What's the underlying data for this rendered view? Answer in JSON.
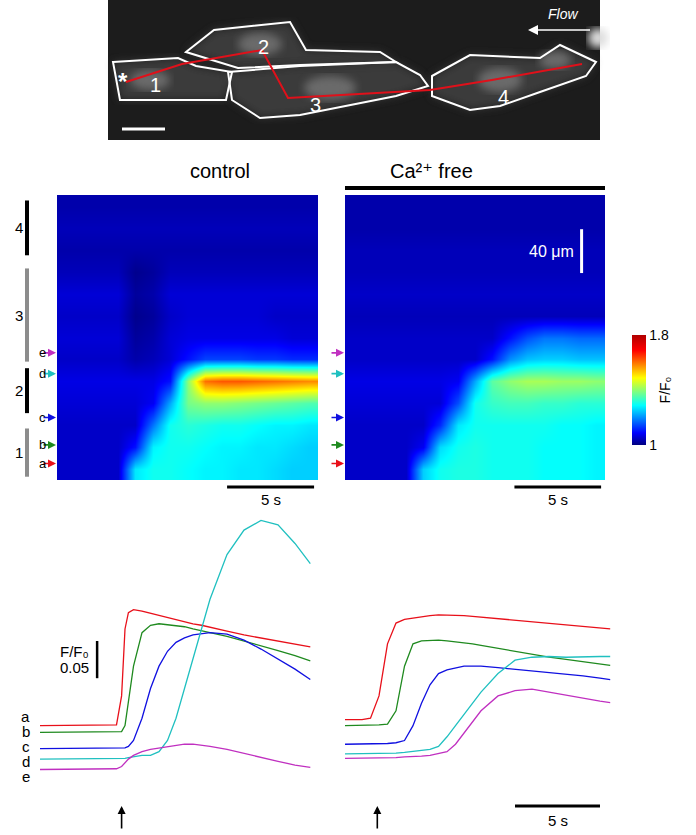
{
  "image": {
    "cell_labels": [
      "1",
      "2",
      "3",
      "4"
    ],
    "stimulus_mark": "*",
    "flow_label": "Flow"
  },
  "chart_data": [
    {
      "type": "heatmap",
      "title": "control",
      "x": [
        0.5,
        1.5,
        2.5,
        3.5,
        4.5,
        5.5,
        6.5,
        7.5,
        8.5,
        9.5,
        10.5,
        11.5,
        12.5,
        13.5,
        14.5
      ],
      "y": [
        10,
        30,
        50,
        70,
        90,
        110,
        130,
        150,
        170,
        190,
        210,
        230,
        250
      ],
      "cells": [
        [
          1.05,
          1.05,
          1.05,
          1.05,
          1.27,
          1.3,
          1.3,
          1.29,
          1.28,
          1.28,
          1.27,
          1.27,
          1.26,
          1.25,
          1.25
        ],
        [
          1.05,
          1.05,
          1.05,
          1.05,
          1.1,
          1.28,
          1.3,
          1.3,
          1.29,
          1.28,
          1.28,
          1.27,
          1.27,
          1.26,
          1.25
        ],
        [
          1.05,
          1.05,
          1.05,
          1.05,
          1.05,
          1.18,
          1.3,
          1.32,
          1.31,
          1.3,
          1.3,
          1.29,
          1.28,
          1.28,
          1.27
        ],
        [
          1.06,
          1.06,
          1.06,
          1.06,
          1.06,
          1.08,
          1.22,
          1.38,
          1.4,
          1.4,
          1.39,
          1.38,
          1.37,
          1.36,
          1.35
        ],
        [
          1.07,
          1.07,
          1.07,
          1.07,
          1.07,
          1.07,
          1.1,
          1.4,
          1.6,
          1.62,
          1.62,
          1.61,
          1.6,
          1.59,
          1.58
        ],
        [
          1.05,
          1.05,
          1.05,
          1.05,
          1.03,
          1.04,
          1.06,
          1.1,
          1.14,
          1.14,
          1.14,
          1.13,
          1.13,
          1.12,
          1.12
        ],
        [
          1.06,
          1.06,
          1.06,
          1.06,
          1.02,
          1.03,
          1.06,
          1.07,
          1.07,
          1.07,
          1.07,
          1.07,
          1.07,
          1.06,
          1.06
        ],
        [
          1.05,
          1.05,
          1.05,
          1.05,
          1.01,
          1.02,
          1.05,
          1.06,
          1.06,
          1.06,
          1.06,
          1.06,
          1.05,
          1.05,
          1.05
        ],
        [
          1.06,
          1.06,
          1.06,
          1.06,
          1.02,
          1.03,
          1.06,
          1.06,
          1.06,
          1.06,
          1.06,
          1.06,
          1.06,
          1.06,
          1.06
        ],
        [
          1.04,
          1.04,
          1.04,
          1.04,
          1.01,
          1.02,
          1.04,
          1.04,
          1.04,
          1.04,
          1.04,
          1.04,
          1.04,
          1.04,
          1.04
        ],
        [
          1.03,
          1.03,
          1.03,
          1.03,
          1.03,
          1.03,
          1.03,
          1.03,
          1.03,
          1.03,
          1.03,
          1.03,
          1.03,
          1.03,
          1.03
        ],
        [
          1.04,
          1.04,
          1.04,
          1.04,
          1.04,
          1.04,
          1.04,
          1.04,
          1.04,
          1.04,
          1.04,
          1.04,
          1.04,
          1.04,
          1.04
        ],
        [
          1.03,
          1.03,
          1.03,
          1.03,
          1.03,
          1.03,
          1.03,
          1.03,
          1.03,
          1.03,
          1.03,
          1.03,
          1.03,
          1.03,
          1.03
        ]
      ],
      "xlim": [
        0,
        15
      ],
      "ylim": [
        0,
        260
      ],
      "tick_labels": false,
      "colorbar_range": [
        1,
        1.8
      ],
      "colorbar_ticks": [
        1,
        1.8
      ],
      "colorbar_title": "F/F₀",
      "time_scale_bar": {
        "value": 5,
        "label": "5 s"
      },
      "regions": [
        {
          "label": "1",
          "from": 3,
          "to": 47
        },
        {
          "label": "2",
          "from": 61,
          "to": 102
        },
        {
          "label": "3",
          "from": 108,
          "to": 193
        },
        {
          "label": "4",
          "from": 205,
          "to": 255
        }
      ],
      "scan_lines": [
        {
          "label": "a",
          "position": 15,
          "color": "#e8101a"
        },
        {
          "label": "b",
          "position": 32,
          "color": "#1f8a1f"
        },
        {
          "label": "c",
          "position": 57,
          "color": "#1010e0"
        },
        {
          "label": "d",
          "position": 97,
          "color": "#20c0c0"
        },
        {
          "label": "e",
          "position": 116,
          "color": "#c030c0"
        }
      ]
    },
    {
      "type": "heatmap",
      "title": "Ca²⁺ free",
      "x": [
        0.5,
        1.5,
        2.5,
        3.5,
        4.5,
        5.5,
        6.5,
        7.5,
        8.5,
        9.5,
        10.5,
        11.5,
        12.5,
        13.5,
        14.5
      ],
      "y": [
        10,
        30,
        50,
        70,
        90,
        110,
        130,
        150,
        170,
        190,
        210,
        230,
        250
      ],
      "cells": [
        [
          1.05,
          1.05,
          1.05,
          1.05,
          1.25,
          1.3,
          1.31,
          1.31,
          1.3,
          1.3,
          1.3,
          1.29,
          1.29,
          1.29,
          1.28
        ],
        [
          1.05,
          1.05,
          1.05,
          1.05,
          1.08,
          1.26,
          1.3,
          1.31,
          1.3,
          1.3,
          1.3,
          1.29,
          1.29,
          1.29,
          1.28
        ],
        [
          1.05,
          1.05,
          1.05,
          1.05,
          1.05,
          1.12,
          1.27,
          1.3,
          1.3,
          1.3,
          1.3,
          1.3,
          1.29,
          1.29,
          1.28
        ],
        [
          1.06,
          1.06,
          1.06,
          1.06,
          1.06,
          1.06,
          1.15,
          1.3,
          1.33,
          1.34,
          1.34,
          1.33,
          1.33,
          1.32,
          1.32
        ],
        [
          1.07,
          1.07,
          1.07,
          1.07,
          1.07,
          1.07,
          1.08,
          1.22,
          1.36,
          1.4,
          1.42,
          1.42,
          1.41,
          1.41,
          1.4
        ],
        [
          1.05,
          1.05,
          1.05,
          1.05,
          1.05,
          1.05,
          1.05,
          1.05,
          1.1,
          1.2,
          1.24,
          1.25,
          1.25,
          1.24,
          1.24
        ],
        [
          1.05,
          1.05,
          1.05,
          1.05,
          1.05,
          1.05,
          1.05,
          1.05,
          1.05,
          1.1,
          1.15,
          1.18,
          1.18,
          1.17,
          1.17
        ],
        [
          1.04,
          1.04,
          1.04,
          1.04,
          1.04,
          1.04,
          1.04,
          1.04,
          1.04,
          1.04,
          1.04,
          1.04,
          1.04,
          1.04,
          1.04
        ],
        [
          1.05,
          1.05,
          1.05,
          1.05,
          1.05,
          1.05,
          1.05,
          1.05,
          1.05,
          1.05,
          1.05,
          1.05,
          1.05,
          1.05,
          1.05
        ],
        [
          1.04,
          1.04,
          1.04,
          1.04,
          1.04,
          1.04,
          1.04,
          1.04,
          1.04,
          1.04,
          1.04,
          1.04,
          1.04,
          1.04,
          1.04
        ],
        [
          1.04,
          1.04,
          1.04,
          1.04,
          1.04,
          1.04,
          1.04,
          1.04,
          1.04,
          1.04,
          1.04,
          1.04,
          1.04,
          1.04,
          1.04
        ],
        [
          1.03,
          1.03,
          1.03,
          1.03,
          1.03,
          1.03,
          1.03,
          1.03,
          1.03,
          1.03,
          1.03,
          1.03,
          1.03,
          1.03,
          1.03
        ],
        [
          1.03,
          1.03,
          1.03,
          1.03,
          1.03,
          1.03,
          1.03,
          1.03,
          1.03,
          1.03,
          1.03,
          1.03,
          1.03,
          1.03,
          1.03
        ]
      ],
      "xlim": [
        0,
        15
      ],
      "ylim": [
        0,
        260
      ],
      "tick_labels": false,
      "colorbar_range": [
        1,
        1.8
      ],
      "time_scale_bar": {
        "value": 5,
        "label": "5 s"
      },
      "distance_scale_bar": {
        "value": 40,
        "label": "40 μm"
      }
    },
    {
      "type": "line",
      "x": [
        0,
        1,
        2,
        3,
        4,
        4.5,
        4.8,
        5.0,
        5.2,
        5.5,
        6,
        6.5,
        7,
        7.5,
        8,
        8.5,
        9,
        9.5,
        10,
        11,
        12,
        13,
        14,
        15,
        15.9
      ],
      "xlim": [
        0,
        16
      ],
      "ylim": [
        0.92,
        1.31
      ],
      "tick_labels": false,
      "stimulus": 4.8,
      "amplitude_scale_bar": {
        "value": 0.05,
        "label": "0.05",
        "title": "F/F₀"
      },
      "series": [
        {
          "name": "a",
          "color": "#e8101a",
          "values": [
            1.02,
            1.02,
            1.021,
            1.02,
            1.02,
            1.021,
            1.06,
            1.15,
            1.172,
            1.176,
            1.174,
            1.171,
            1.168,
            1.166,
            1.163,
            1.16,
            1.157,
            1.155,
            1.152,
            1.147,
            1.142,
            1.138,
            1.134,
            1.13,
            1.126
          ]
        },
        {
          "name": "b",
          "color": "#1f8a1f",
          "values": [
            1.011,
            1.011,
            1.012,
            1.011,
            1.011,
            1.011,
            1.012,
            1.02,
            1.05,
            1.1,
            1.145,
            1.155,
            1.157,
            1.156,
            1.155,
            1.153,
            1.15,
            1.148,
            1.145,
            1.14,
            1.134,
            1.128,
            1.121,
            1.114,
            1.107
          ]
        },
        {
          "name": "c",
          "color": "#1010e0",
          "values": [
            0.989,
            0.989,
            0.99,
            0.989,
            0.989,
            0.989,
            0.99,
            0.99,
            0.992,
            1.0,
            1.03,
            1.07,
            1.1,
            1.12,
            1.132,
            1.138,
            1.142,
            1.144,
            1.145,
            1.143,
            1.135,
            1.123,
            1.11,
            1.096,
            1.082
          ]
        },
        {
          "name": "d",
          "color": "#20c0c0",
          "values": [
            0.975,
            0.975,
            0.976,
            0.975,
            0.975,
            0.975,
            0.976,
            0.976,
            0.977,
            0.978,
            0.98,
            0.98,
            0.985,
            1.0,
            1.03,
            1.07,
            1.11,
            1.15,
            1.19,
            1.25,
            1.283,
            1.296,
            1.29,
            1.265,
            1.238
          ]
        },
        {
          "name": "e",
          "color": "#c030c0",
          "values": [
            0.961,
            0.961,
            0.962,
            0.961,
            0.961,
            0.962,
            0.965,
            0.97,
            0.975,
            0.98,
            0.985,
            0.988,
            0.99,
            0.992,
            0.994,
            0.995,
            0.995,
            0.994,
            0.992,
            0.988,
            0.983,
            0.977,
            0.972,
            0.967,
            0.964
          ]
        }
      ]
    },
    {
      "type": "line",
      "x": [
        0,
        0.5,
        1,
        1.5,
        2,
        2.5,
        3,
        3.5,
        4,
        4.5,
        5,
        5.5,
        6,
        6.5,
        7,
        7.5,
        8,
        9,
        10,
        11,
        12,
        13,
        14,
        15,
        15.6
      ],
      "xlim": [
        0,
        16
      ],
      "ylim": [
        0.92,
        1.31
      ],
      "tick_labels": false,
      "stimulus": 1.9,
      "time_scale_bar": {
        "value": 5,
        "label": "5 s"
      },
      "series": [
        {
          "color": "#e8101a",
          "values": [
            1.028,
            1.028,
            1.028,
            1.03,
            1.06,
            1.13,
            1.158,
            1.163,
            1.165,
            1.167,
            1.168,
            1.169,
            1.169,
            1.169,
            1.168,
            1.167,
            1.166,
            1.164,
            1.162,
            1.16,
            1.158,
            1.156,
            1.154,
            1.152,
            1.15
          ]
        },
        {
          "color": "#1f8a1f",
          "values": [
            1.02,
            1.02,
            1.02,
            1.02,
            1.021,
            1.022,
            1.04,
            1.1,
            1.13,
            1.134,
            1.135,
            1.135,
            1.134,
            1.133,
            1.132,
            1.13,
            1.128,
            1.124,
            1.12,
            1.116,
            1.112,
            1.109,
            1.106,
            1.103,
            1.101
          ]
        },
        {
          "color": "#1010e0",
          "values": [
            0.995,
            0.995,
            0.995,
            0.995,
            0.995,
            0.996,
            0.997,
            1.0,
            1.02,
            1.05,
            1.075,
            1.09,
            1.095,
            1.098,
            1.1,
            1.1,
            1.1,
            1.098,
            1.096,
            1.094,
            1.091,
            1.089,
            1.087,
            1.084,
            1.082
          ]
        },
        {
          "color": "#20c0c0",
          "values": [
            0.982,
            0.982,
            0.982,
            0.982,
            0.982,
            0.983,
            0.983,
            0.984,
            0.985,
            0.986,
            0.988,
            0.992,
            1.005,
            1.02,
            1.035,
            1.05,
            1.065,
            1.09,
            1.108,
            1.112,
            1.113,
            1.112,
            1.113,
            1.113,
            1.113
          ]
        },
        {
          "color": "#c030c0",
          "values": [
            0.976,
            0.976,
            0.976,
            0.976,
            0.976,
            0.977,
            0.977,
            0.978,
            0.978,
            0.979,
            0.98,
            0.982,
            0.985,
            0.995,
            1.01,
            1.025,
            1.04,
            1.06,
            1.067,
            1.069,
            1.065,
            1.06,
            1.056,
            1.053,
            1.051
          ]
        }
      ]
    }
  ]
}
